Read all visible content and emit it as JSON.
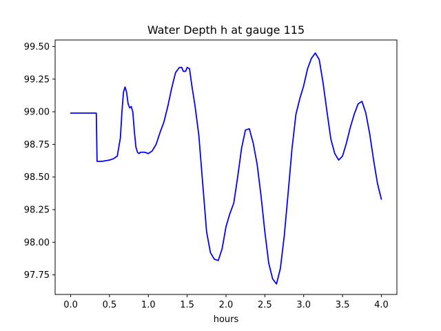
{
  "chart_data": {
    "type": "line",
    "title": "Water Depth h at gauge 115",
    "xlabel": "hours",
    "ylabel": "",
    "xlim": [
      -0.2,
      4.2
    ],
    "ylim": [
      97.6,
      99.55
    ],
    "xticks": [
      0.0,
      0.5,
      1.0,
      1.5,
      2.0,
      2.5,
      3.0,
      3.5,
      4.0
    ],
    "xtick_labels": [
      "0.0",
      "0.5",
      "1.0",
      "1.5",
      "2.0",
      "2.5",
      "3.0",
      "3.5",
      "4.0"
    ],
    "yticks": [
      97.75,
      98.0,
      98.25,
      98.5,
      98.75,
      99.0,
      99.25,
      99.5
    ],
    "ytick_labels": [
      "97.75",
      "98.00",
      "98.25",
      "98.50",
      "98.75",
      "99.00",
      "99.25",
      "99.50"
    ],
    "grid": false,
    "series": [
      {
        "color": "#0000ff",
        "x": [
          0.0,
          0.1,
          0.2,
          0.3,
          0.33,
          0.335,
          0.34,
          0.4,
          0.5,
          0.55,
          0.6,
          0.64,
          0.66,
          0.68,
          0.7,
          0.72,
          0.74,
          0.76,
          0.78,
          0.8,
          0.82,
          0.84,
          0.86,
          0.88,
          0.9,
          0.95,
          1.0,
          1.05,
          1.1,
          1.15,
          1.2,
          1.25,
          1.3,
          1.35,
          1.4,
          1.43,
          1.45,
          1.48,
          1.5,
          1.53,
          1.56,
          1.6,
          1.65,
          1.7,
          1.75,
          1.8,
          1.85,
          1.9,
          1.95,
          2.0,
          2.05,
          2.1,
          2.15,
          2.2,
          2.25,
          2.3,
          2.35,
          2.4,
          2.45,
          2.5,
          2.55,
          2.6,
          2.65,
          2.7,
          2.75,
          2.8,
          2.85,
          2.9,
          2.95,
          3.0,
          3.05,
          3.1,
          3.15,
          3.2,
          3.25,
          3.3,
          3.35,
          3.4,
          3.45,
          3.5,
          3.55,
          3.6,
          3.65,
          3.7,
          3.75,
          3.8,
          3.85,
          3.9,
          3.95,
          4.0
        ],
        "y": [
          98.99,
          98.99,
          98.99,
          98.99,
          98.99,
          98.8,
          98.62,
          98.62,
          98.63,
          98.64,
          98.66,
          98.8,
          99.0,
          99.15,
          99.19,
          99.15,
          99.06,
          99.03,
          99.04,
          99.0,
          98.85,
          98.73,
          98.69,
          98.68,
          98.69,
          98.69,
          98.68,
          98.7,
          98.75,
          98.84,
          98.92,
          99.04,
          99.18,
          99.3,
          99.34,
          99.34,
          99.31,
          99.31,
          99.34,
          99.33,
          99.2,
          99.05,
          98.82,
          98.45,
          98.08,
          97.92,
          97.87,
          97.86,
          97.95,
          98.12,
          98.22,
          98.3,
          98.5,
          98.72,
          98.86,
          98.87,
          98.76,
          98.6,
          98.36,
          98.08,
          97.84,
          97.72,
          97.68,
          97.8,
          98.05,
          98.38,
          98.72,
          98.98,
          99.1,
          99.2,
          99.33,
          99.41,
          99.45,
          99.4,
          99.22,
          99.0,
          98.79,
          98.68,
          98.63,
          98.66,
          98.76,
          98.88,
          98.98,
          99.06,
          99.08,
          98.99,
          98.83,
          98.63,
          98.45,
          98.33
        ]
      }
    ]
  }
}
